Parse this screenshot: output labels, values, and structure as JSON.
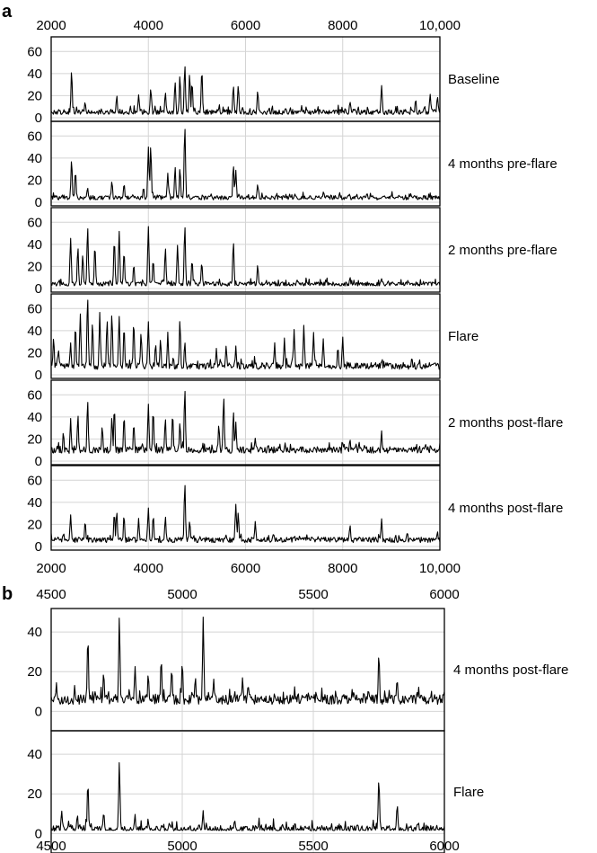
{
  "chart_data": [
    {
      "panel": "a",
      "type": "line",
      "xlim": [
        2000,
        10000
      ],
      "ylim": [
        0,
        70
      ],
      "x_ticks": [
        2000,
        4000,
        6000,
        8000,
        10000
      ],
      "x_tick_labels": [
        "2000",
        "4000",
        "6000",
        "8000",
        "10,000"
      ],
      "y_ticks": [
        0,
        20,
        40,
        60
      ],
      "grid": true,
      "series": [
        {
          "name": "Baseline",
          "y_ticks": [
            0,
            20,
            40,
            60
          ],
          "baseline": 5,
          "noise": 2.5,
          "peaks": [
            [
              2420,
              41
            ],
            [
              2700,
              12
            ],
            [
              3350,
              18
            ],
            [
              3800,
              18
            ],
            [
              4050,
              24
            ],
            [
              4350,
              22
            ],
            [
              4550,
              30
            ],
            [
              4650,
              36
            ],
            [
              4750,
              45
            ],
            [
              4850,
              38
            ],
            [
              4900,
              30
            ],
            [
              5100,
              42
            ],
            [
              5750,
              28
            ],
            [
              5850,
              28
            ],
            [
              6250,
              22
            ],
            [
              8150,
              12
            ],
            [
              8800,
              27
            ],
            [
              9500,
              15
            ],
            [
              9800,
              20
            ],
            [
              9950,
              18
            ]
          ]
        },
        {
          "name": "4 months pre-flare",
          "y_ticks": [
            0,
            20,
            40,
            60
          ],
          "baseline": 4,
          "noise": 2,
          "peaks": [
            [
              2420,
              38
            ],
            [
              2500,
              26
            ],
            [
              2750,
              12
            ],
            [
              3250,
              18
            ],
            [
              3500,
              15
            ],
            [
              3900,
              12
            ],
            [
              4000,
              48
            ],
            [
              4050,
              49
            ],
            [
              4400,
              25
            ],
            [
              4550,
              30
            ],
            [
              4650,
              28
            ],
            [
              4750,
              68
            ],
            [
              5750,
              32
            ],
            [
              5800,
              28
            ],
            [
              6250,
              14
            ],
            [
              8500,
              6
            ]
          ]
        },
        {
          "name": "2 months pre-flare",
          "y_ticks": [
            0,
            20,
            40,
            60
          ],
          "baseline": 4,
          "noise": 2,
          "peaks": [
            [
              2400,
              44
            ],
            [
              2550,
              35
            ],
            [
              2650,
              30
            ],
            [
              2750,
              55
            ],
            [
              2900,
              38
            ],
            [
              3300,
              42
            ],
            [
              3400,
              50
            ],
            [
              3500,
              32
            ],
            [
              3700,
              20
            ],
            [
              4000,
              55
            ],
            [
              4100,
              25
            ],
            [
              4350,
              35
            ],
            [
              4600,
              38
            ],
            [
              4750,
              55
            ],
            [
              4900,
              25
            ],
            [
              5100,
              22
            ],
            [
              5750,
              40
            ],
            [
              6250,
              20
            ],
            [
              8150,
              8
            ],
            [
              8800,
              8
            ]
          ]
        },
        {
          "name": "Flare",
          "y_ticks": [
            0,
            20,
            40,
            60
          ],
          "baseline": 8,
          "noise": 3,
          "peaks": [
            [
              2050,
              30
            ],
            [
              2150,
              20
            ],
            [
              2400,
              25
            ],
            [
              2500,
              40
            ],
            [
              2600,
              52
            ],
            [
              2750,
              68
            ],
            [
              2850,
              45
            ],
            [
              3000,
              52
            ],
            [
              3150,
              45
            ],
            [
              3250,
              52
            ],
            [
              3400,
              50
            ],
            [
              3500,
              40
            ],
            [
              3700,
              45
            ],
            [
              3850,
              35
            ],
            [
              4000,
              45
            ],
            [
              4150,
              25
            ],
            [
              4250,
              30
            ],
            [
              4400,
              35
            ],
            [
              4650,
              46
            ],
            [
              4750,
              25
            ],
            [
              5400,
              20
            ],
            [
              5600,
              24
            ],
            [
              5800,
              22
            ],
            [
              6600,
              25
            ],
            [
              6800,
              30
            ],
            [
              7000,
              38
            ],
            [
              7200,
              42
            ],
            [
              7400,
              36
            ],
            [
              7600,
              30
            ],
            [
              7900,
              22
            ],
            [
              8000,
              30
            ],
            [
              8800,
              8
            ]
          ]
        },
        {
          "name": "2 months post-flare",
          "y_ticks": [
            0,
            20,
            40,
            60
          ],
          "baseline": 10,
          "noise": 3,
          "peaks": [
            [
              2250,
              22
            ],
            [
              2400,
              35
            ],
            [
              2550,
              38
            ],
            [
              2750,
              50
            ],
            [
              3050,
              28
            ],
            [
              3250,
              35
            ],
            [
              3300,
              45
            ],
            [
              3500,
              38
            ],
            [
              3700,
              30
            ],
            [
              4000,
              48
            ],
            [
              4100,
              42
            ],
            [
              4350,
              35
            ],
            [
              4500,
              40
            ],
            [
              4650,
              30
            ],
            [
              4750,
              62
            ],
            [
              5450,
              30
            ],
            [
              5550,
              55
            ],
            [
              5750,
              40
            ],
            [
              5800,
              30
            ],
            [
              6200,
              18
            ],
            [
              8150,
              15
            ],
            [
              8800,
              22
            ]
          ]
        },
        {
          "name": "4 months post-flare",
          "y_ticks": [
            0,
            20,
            40,
            60
          ],
          "baseline": 6,
          "noise": 2.5,
          "peaks": [
            [
              2400,
              26
            ],
            [
              2700,
              20
            ],
            [
              3300,
              28
            ],
            [
              3350,
              30
            ],
            [
              3500,
              26
            ],
            [
              3800,
              22
            ],
            [
              4000,
              32
            ],
            [
              4100,
              26
            ],
            [
              4350,
              25
            ],
            [
              4750,
              55
            ],
            [
              4850,
              20
            ],
            [
              5800,
              36
            ],
            [
              5850,
              28
            ],
            [
              6200,
              20
            ],
            [
              8150,
              18
            ],
            [
              8800,
              23
            ],
            [
              9950,
              10
            ]
          ]
        }
      ]
    },
    {
      "panel": "b",
      "type": "line",
      "xlim": [
        4500,
        6000
      ],
      "ylim": [
        -8,
        50
      ],
      "x_ticks": [
        4500,
        5000,
        5500,
        6000
      ],
      "x_tick_labels": [
        "4500",
        "5000",
        "5500",
        "6000"
      ],
      "y_ticks": [
        0,
        20,
        40
      ],
      "grid": true,
      "series": [
        {
          "name": "4 months post-flare",
          "y_ticks": [
            0,
            20,
            40
          ],
          "baseline": 6,
          "noise": 2.5,
          "peaks": [
            [
              4520,
              12
            ],
            [
              4590,
              10
            ],
            [
              4640,
              35
            ],
            [
              4700,
              18
            ],
            [
              4760,
              45
            ],
            [
              4820,
              20
            ],
            [
              4870,
              16
            ],
            [
              4920,
              24
            ],
            [
              4960,
              20
            ],
            [
              5000,
              22
            ],
            [
              5050,
              15
            ],
            [
              5080,
              44
            ],
            [
              5120,
              15
            ],
            [
              5200,
              8
            ],
            [
              5230,
              14
            ],
            [
              5750,
              27
            ],
            [
              5820,
              13
            ],
            [
              5900,
              6
            ]
          ]
        },
        {
          "name": "Flare",
          "y_ticks": [
            0,
            20,
            40
          ],
          "baseline": 2,
          "noise": 2,
          "peaks": [
            [
              4540,
              10
            ],
            [
              4600,
              8
            ],
            [
              4640,
              24
            ],
            [
              4700,
              10
            ],
            [
              4760,
              35
            ],
            [
              4820,
              8
            ],
            [
              4870,
              6
            ],
            [
              4950,
              5
            ],
            [
              5080,
              10
            ],
            [
              5200,
              6
            ],
            [
              5750,
              27
            ],
            [
              5820,
              13
            ],
            [
              5900,
              5
            ]
          ]
        }
      ]
    }
  ]
}
